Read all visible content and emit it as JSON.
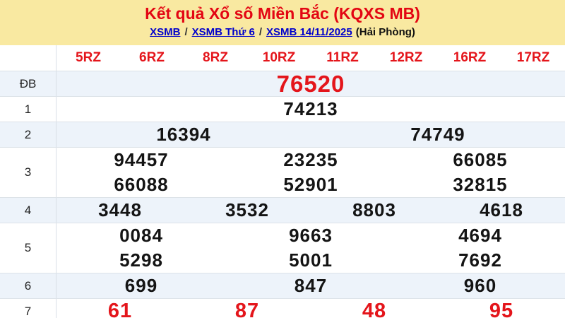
{
  "header": {
    "title": "Kết quả Xổ số Miền Bắc (KQXS MB)",
    "breadcrumb": {
      "links": [
        "XSMB",
        "XSMB Thứ 6",
        "XSMB 14/11/2025"
      ],
      "separator": "/",
      "suffix": "(Hải Phòng)"
    }
  },
  "table": {
    "columns": [
      "5RZ",
      "6RZ",
      "8RZ",
      "10RZ",
      "11RZ",
      "12RZ",
      "16RZ",
      "17RZ"
    ],
    "rows": [
      {
        "label": "ĐB",
        "style": "jackpot",
        "zebra": true,
        "lines": [
          [
            "76520"
          ]
        ]
      },
      {
        "label": "1",
        "style": "",
        "zebra": false,
        "lines": [
          [
            "74213"
          ]
        ]
      },
      {
        "label": "2",
        "style": "",
        "zebra": true,
        "lines": [
          [
            "16394",
            "74749"
          ]
        ]
      },
      {
        "label": "3",
        "style": "",
        "zebra": false,
        "lines": [
          [
            "94457",
            "23235",
            "66085"
          ],
          [
            "66088",
            "52901",
            "32815"
          ]
        ]
      },
      {
        "label": "4",
        "style": "",
        "zebra": true,
        "lines": [
          [
            "3448",
            "3532",
            "8803",
            "4618"
          ]
        ]
      },
      {
        "label": "5",
        "style": "",
        "zebra": false,
        "lines": [
          [
            "0084",
            "9663",
            "4694"
          ],
          [
            "5298",
            "5001",
            "7692"
          ]
        ]
      },
      {
        "label": "6",
        "style": "",
        "zebra": true,
        "lines": [
          [
            "699",
            "847",
            "960"
          ]
        ]
      },
      {
        "label": "7",
        "style": "red",
        "zebra": false,
        "lines": [
          [
            "61",
            "87",
            "48",
            "95"
          ]
        ]
      }
    ]
  },
  "colors": {
    "banner_bg": "#F9E9A1",
    "title_red": "#E30613",
    "number_red": "#E4151B",
    "link_blue": "#0000CC",
    "zebra_row_bg": "#EDF3FA",
    "number_black": "#141414"
  }
}
